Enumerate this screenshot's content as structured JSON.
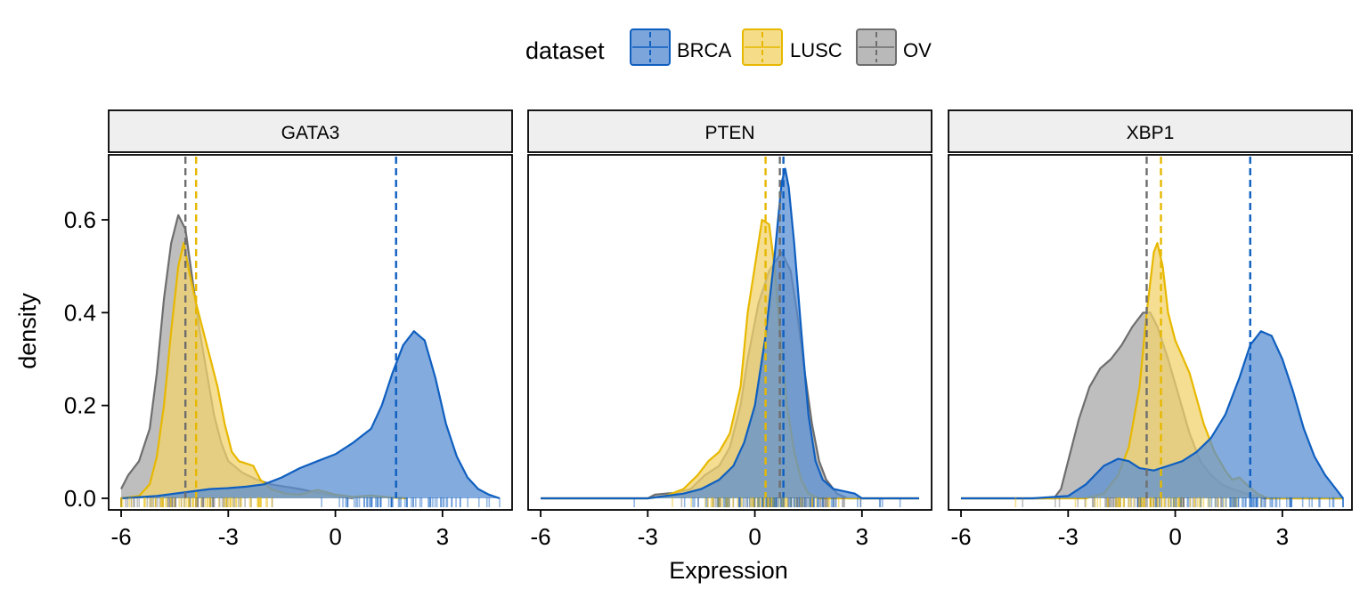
{
  "chart_data": {
    "type": "area",
    "facet_by": "gene",
    "xlabel": "Expression",
    "ylabel": "density",
    "xlim": [
      -6.35,
      4.95
    ],
    "ylim": [
      -0.025,
      0.74
    ],
    "xticks": [
      -6,
      -3,
      0,
      3
    ],
    "xtick_labels": [
      "-6",
      "-3",
      "0",
      "3"
    ],
    "yticks": [
      0.0,
      0.2,
      0.4,
      0.6
    ],
    "ytick_labels": [
      "0.0",
      "0.2",
      "0.4",
      "0.6"
    ],
    "legend": {
      "title": "dataset",
      "position": "top"
    },
    "series": [
      {
        "name": "BRCA",
        "color": "#0F5FC0",
        "fill": "#5B8FD2"
      },
      {
        "name": "LUSC",
        "color": "#E7B800",
        "fill": "#F1D36C"
      },
      {
        "name": "OV",
        "color": "#6E6E6E",
        "fill": "#A8A8A8"
      }
    ],
    "panels": [
      {
        "label": "GATA3",
        "means": {
          "BRCA": 1.7,
          "LUSC": -3.9,
          "OV": -4.2
        },
        "density": {
          "BRCA": [
            [
              -6.0,
              0.0
            ],
            [
              -5.0,
              0.005
            ],
            [
              -4.5,
              0.01
            ],
            [
              -4.0,
              0.015
            ],
            [
              -3.5,
              0.02
            ],
            [
              -3.0,
              0.022
            ],
            [
              -2.5,
              0.025
            ],
            [
              -2.0,
              0.03
            ],
            [
              -1.5,
              0.045
            ],
            [
              -1.0,
              0.065
            ],
            [
              -0.5,
              0.08
            ],
            [
              0.0,
              0.095
            ],
            [
              0.5,
              0.12
            ],
            [
              1.0,
              0.15
            ],
            [
              1.3,
              0.2
            ],
            [
              1.6,
              0.27
            ],
            [
              1.9,
              0.33
            ],
            [
              2.2,
              0.36
            ],
            [
              2.5,
              0.34
            ],
            [
              2.8,
              0.26
            ],
            [
              3.1,
              0.16
            ],
            [
              3.4,
              0.09
            ],
            [
              3.7,
              0.045
            ],
            [
              4.0,
              0.02
            ],
            [
              4.3,
              0.008
            ],
            [
              4.6,
              0.0
            ]
          ],
          "LUSC": [
            [
              -6.0,
              0.0
            ],
            [
              -5.5,
              0.005
            ],
            [
              -5.2,
              0.03
            ],
            [
              -5.0,
              0.09
            ],
            [
              -4.8,
              0.2
            ],
            [
              -4.6,
              0.36
            ],
            [
              -4.4,
              0.5
            ],
            [
              -4.25,
              0.55
            ],
            [
              -4.1,
              0.49
            ],
            [
              -3.9,
              0.42
            ],
            [
              -3.7,
              0.36
            ],
            [
              -3.5,
              0.3
            ],
            [
              -3.3,
              0.24
            ],
            [
              -3.1,
              0.16
            ],
            [
              -2.9,
              0.1
            ],
            [
              -2.7,
              0.08
            ],
            [
              -2.5,
              0.075
            ],
            [
              -2.3,
              0.07
            ],
            [
              -2.1,
              0.04
            ],
            [
              -1.8,
              0.02
            ],
            [
              -1.4,
              0.01
            ],
            [
              -1.0,
              0.008
            ],
            [
              -0.5,
              0.018
            ],
            [
              0.0,
              0.008
            ],
            [
              0.5,
              0.003
            ],
            [
              1.0,
              0.006
            ],
            [
              1.5,
              0.002
            ],
            [
              2.0,
              0.0
            ]
          ],
          "OV": [
            [
              -6.0,
              0.02
            ],
            [
              -5.8,
              0.05
            ],
            [
              -5.5,
              0.08
            ],
            [
              -5.2,
              0.15
            ],
            [
              -5.0,
              0.27
            ],
            [
              -4.8,
              0.43
            ],
            [
              -4.6,
              0.55
            ],
            [
              -4.4,
              0.61
            ],
            [
              -4.2,
              0.58
            ],
            [
              -4.0,
              0.47
            ],
            [
              -3.8,
              0.36
            ],
            [
              -3.6,
              0.27
            ],
            [
              -3.4,
              0.18
            ],
            [
              -3.2,
              0.12
            ],
            [
              -3.0,
              0.08
            ],
            [
              -2.6,
              0.055
            ],
            [
              -2.2,
              0.04
            ],
            [
              -1.8,
              0.03
            ],
            [
              -1.4,
              0.025
            ],
            [
              -1.0,
              0.02
            ],
            [
              -0.5,
              0.012
            ],
            [
              0.0,
              0.005
            ],
            [
              0.5,
              0.0
            ]
          ]
        }
      },
      {
        "label": "PTEN",
        "means": {
          "BRCA": 0.8,
          "LUSC": 0.3,
          "OV": 0.7
        },
        "density": {
          "BRCA": [
            [
              -6.0,
              0.0
            ],
            [
              -3.0,
              0.0
            ],
            [
              -2.5,
              0.005
            ],
            [
              -2.0,
              0.01
            ],
            [
              -1.5,
              0.02
            ],
            [
              -1.0,
              0.04
            ],
            [
              -0.6,
              0.07
            ],
            [
              -0.3,
              0.12
            ],
            [
              0.0,
              0.2
            ],
            [
              0.3,
              0.35
            ],
            [
              0.55,
              0.52
            ],
            [
              0.75,
              0.68
            ],
            [
              0.85,
              0.71
            ],
            [
              0.95,
              0.67
            ],
            [
              1.1,
              0.55
            ],
            [
              1.3,
              0.36
            ],
            [
              1.5,
              0.18
            ],
            [
              1.7,
              0.08
            ],
            [
              1.9,
              0.04
            ],
            [
              2.2,
              0.02
            ],
            [
              2.5,
              0.015
            ],
            [
              2.8,
              0.01
            ],
            [
              3.0,
              0.0
            ],
            [
              4.6,
              0.0
            ]
          ],
          "LUSC": [
            [
              -6.0,
              0.0
            ],
            [
              -3.0,
              0.0
            ],
            [
              -2.5,
              0.005
            ],
            [
              -2.0,
              0.02
            ],
            [
              -1.6,
              0.05
            ],
            [
              -1.3,
              0.08
            ],
            [
              -1.0,
              0.1
            ],
            [
              -0.7,
              0.14
            ],
            [
              -0.4,
              0.24
            ],
            [
              -0.2,
              0.4
            ],
            [
              0.0,
              0.5
            ],
            [
              0.2,
              0.6
            ],
            [
              0.4,
              0.59
            ],
            [
              0.55,
              0.5
            ],
            [
              0.7,
              0.36
            ],
            [
              0.9,
              0.2
            ],
            [
              1.1,
              0.1
            ],
            [
              1.3,
              0.04
            ],
            [
              1.5,
              0.01
            ],
            [
              1.8,
              0.0
            ],
            [
              4.6,
              0.0
            ]
          ],
          "OV": [
            [
              -6.0,
              0.0
            ],
            [
              -3.0,
              0.0
            ],
            [
              -2.8,
              0.008
            ],
            [
              -2.5,
              0.01
            ],
            [
              -2.2,
              0.012
            ],
            [
              -1.8,
              0.02
            ],
            [
              -1.4,
              0.05
            ],
            [
              -1.0,
              0.07
            ],
            [
              -0.7,
              0.11
            ],
            [
              -0.4,
              0.2
            ],
            [
              -0.2,
              0.3
            ],
            [
              0.1,
              0.42
            ],
            [
              0.4,
              0.49
            ],
            [
              0.75,
              0.53
            ],
            [
              1.0,
              0.49
            ],
            [
              1.2,
              0.39
            ],
            [
              1.4,
              0.27
            ],
            [
              1.6,
              0.16
            ],
            [
              1.8,
              0.08
            ],
            [
              2.0,
              0.04
            ],
            [
              2.3,
              0.01
            ],
            [
              2.6,
              0.0
            ],
            [
              4.6,
              0.0
            ]
          ]
        }
      },
      {
        "label": "XBP1",
        "means": {
          "BRCA": 2.1,
          "LUSC": -0.4,
          "OV": -0.8
        },
        "density": {
          "BRCA": [
            [
              -6.0,
              0.0
            ],
            [
              -4.0,
              0.0
            ],
            [
              -3.0,
              0.005
            ],
            [
              -2.5,
              0.03
            ],
            [
              -2.0,
              0.07
            ],
            [
              -1.6,
              0.085
            ],
            [
              -1.3,
              0.08
            ],
            [
              -1.0,
              0.065
            ],
            [
              -0.6,
              0.06
            ],
            [
              -0.2,
              0.07
            ],
            [
              0.2,
              0.08
            ],
            [
              0.6,
              0.1
            ],
            [
              1.0,
              0.13
            ],
            [
              1.4,
              0.18
            ],
            [
              1.8,
              0.26
            ],
            [
              2.1,
              0.33
            ],
            [
              2.4,
              0.36
            ],
            [
              2.7,
              0.35
            ],
            [
              3.0,
              0.3
            ],
            [
              3.3,
              0.23
            ],
            [
              3.6,
              0.15
            ],
            [
              3.9,
              0.09
            ],
            [
              4.2,
              0.05
            ],
            [
              4.5,
              0.02
            ],
            [
              4.7,
              0.0
            ]
          ],
          "LUSC": [
            [
              -6.0,
              0.0
            ],
            [
              -2.5,
              0.0
            ],
            [
              -2.0,
              0.01
            ],
            [
              -1.6,
              0.05
            ],
            [
              -1.3,
              0.11
            ],
            [
              -1.0,
              0.24
            ],
            [
              -0.8,
              0.4
            ],
            [
              -0.6,
              0.53
            ],
            [
              -0.5,
              0.55
            ],
            [
              -0.35,
              0.5
            ],
            [
              -0.2,
              0.4
            ],
            [
              0.0,
              0.34
            ],
            [
              0.4,
              0.27
            ],
            [
              0.8,
              0.16
            ],
            [
              1.1,
              0.1
            ],
            [
              1.4,
              0.06
            ],
            [
              1.6,
              0.04
            ],
            [
              1.8,
              0.045
            ],
            [
              2.0,
              0.03
            ],
            [
              2.3,
              0.01
            ],
            [
              2.6,
              0.0
            ],
            [
              4.7,
              0.0
            ]
          ],
          "OV": [
            [
              -6.0,
              0.0
            ],
            [
              -3.4,
              0.0
            ],
            [
              -3.2,
              0.02
            ],
            [
              -3.0,
              0.08
            ],
            [
              -2.7,
              0.17
            ],
            [
              -2.4,
              0.24
            ],
            [
              -2.1,
              0.28
            ],
            [
              -1.8,
              0.3
            ],
            [
              -1.5,
              0.33
            ],
            [
              -1.2,
              0.37
            ],
            [
              -0.9,
              0.4
            ],
            [
              -0.7,
              0.4
            ],
            [
              -0.5,
              0.37
            ],
            [
              -0.2,
              0.3
            ],
            [
              0.1,
              0.22
            ],
            [
              0.4,
              0.14
            ],
            [
              0.7,
              0.08
            ],
            [
              1.0,
              0.05
            ],
            [
              1.3,
              0.03
            ],
            [
              1.6,
              0.02
            ],
            [
              2.0,
              0.01
            ],
            [
              2.5,
              0.0
            ],
            [
              4.7,
              0.0
            ]
          ]
        }
      }
    ]
  }
}
